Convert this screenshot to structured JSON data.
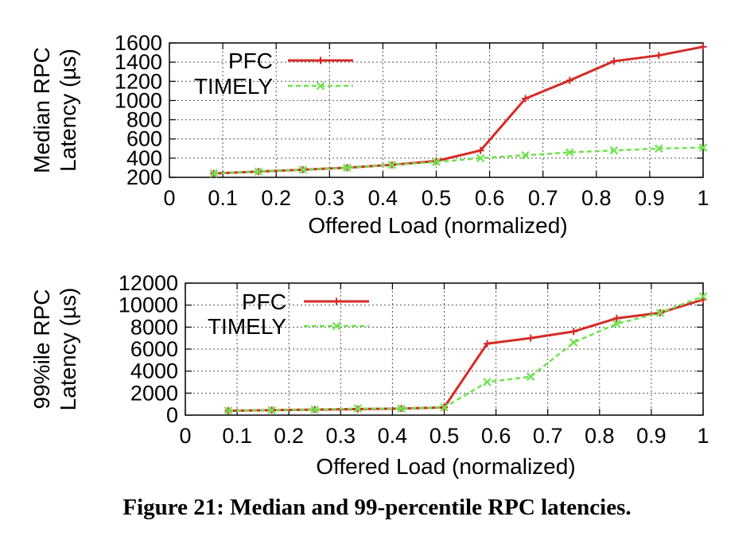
{
  "caption": "Figure 21: Median and 99-percentile RPC latencies.",
  "chart_data": [
    {
      "type": "line",
      "xlabel": "Offered Load (normalized)",
      "ylabel_lines": [
        "Median RPC",
        "Latency (µs)"
      ],
      "xlim": [
        0,
        1
      ],
      "ylim": [
        200,
        1600
      ],
      "xticks": [
        "0",
        "0.1",
        "0.2",
        "0.3",
        "0.4",
        "0.5",
        "0.6",
        "0.7",
        "0.8",
        "0.9",
        "1"
      ],
      "yticks": [
        "200",
        "400",
        "600",
        "800",
        "1000",
        "1200",
        "1400",
        "1600"
      ],
      "grid": true,
      "legend_position": "top-left",
      "x": [
        0.083,
        0.167,
        0.25,
        0.333,
        0.417,
        0.5,
        0.583,
        0.667,
        0.75,
        0.833,
        0.917,
        1.0
      ],
      "series": [
        {
          "name": "PFC",
          "color": "#d62a26",
          "style": "solid",
          "marker": "plus",
          "values": [
            240,
            260,
            280,
            300,
            330,
            370,
            480,
            1020,
            1210,
            1410,
            1470,
            1560
          ]
        },
        {
          "name": "TIMELY",
          "color": "#6ee24f",
          "style": "dashed",
          "marker": "cross",
          "values": [
            240,
            260,
            280,
            300,
            330,
            360,
            400,
            430,
            460,
            480,
            500,
            510
          ]
        }
      ]
    },
    {
      "type": "line",
      "xlabel": "Offered Load (normalized)",
      "ylabel_lines": [
        "99%ile RPC",
        "Latency (µs)"
      ],
      "xlim": [
        0,
        1
      ],
      "ylim": [
        0,
        12000
      ],
      "xticks": [
        "0",
        "0.1",
        "0.2",
        "0.3",
        "0.4",
        "0.5",
        "0.6",
        "0.7",
        "0.8",
        "0.9",
        "1"
      ],
      "yticks": [
        "0",
        "2000",
        "4000",
        "6000",
        "8000",
        "10000",
        "12000"
      ],
      "grid": true,
      "legend_position": "top-left",
      "x": [
        0.083,
        0.167,
        0.25,
        0.333,
        0.417,
        0.5,
        0.583,
        0.667,
        0.75,
        0.833,
        0.917,
        1.0
      ],
      "series": [
        {
          "name": "PFC",
          "color": "#d62a26",
          "style": "solid",
          "marker": "plus",
          "values": [
            400,
            450,
            500,
            550,
            600,
            700,
            6500,
            7000,
            7600,
            8800,
            9300,
            10500
          ]
        },
        {
          "name": "TIMELY",
          "color": "#6ee24f",
          "style": "dashed",
          "marker": "cross",
          "values": [
            400,
            450,
            500,
            600,
            600,
            700,
            3000,
            3500,
            6600,
            8300,
            9300,
            10800
          ]
        }
      ]
    }
  ]
}
